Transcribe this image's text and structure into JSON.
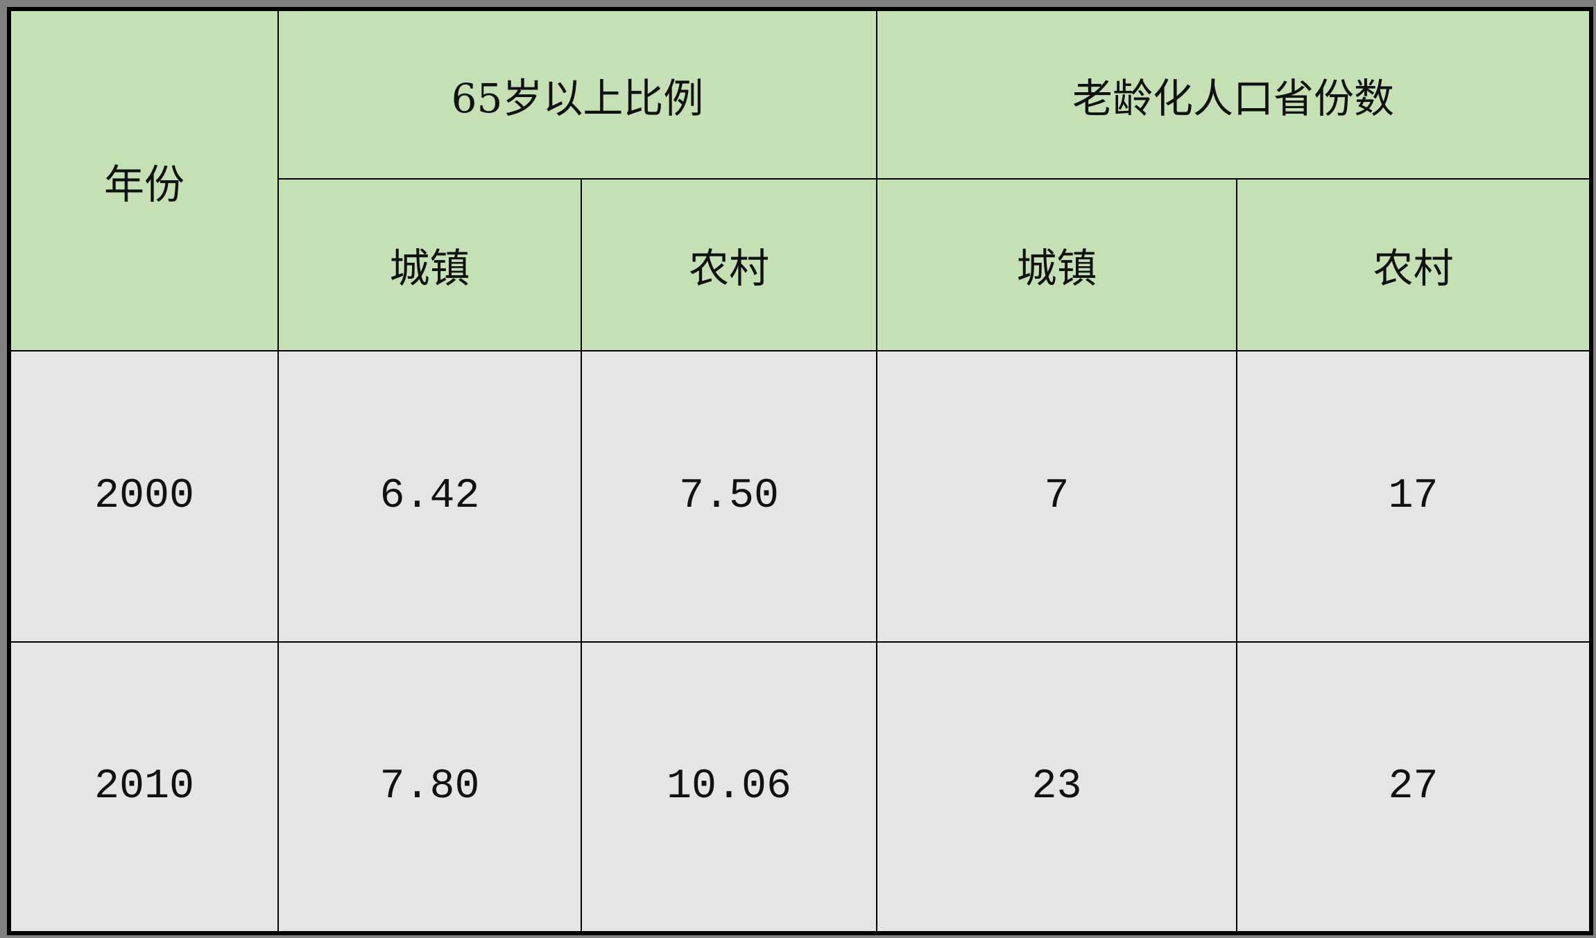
{
  "table": {
    "header": {
      "year": "年份",
      "group1": "65岁以上比例",
      "group2": "老龄化人口省份数",
      "sub": [
        "城镇",
        "农村",
        "城镇",
        "农村"
      ]
    },
    "rows": [
      {
        "year": "2000",
        "values": [
          "6.42",
          "7.50",
          "7",
          "17"
        ]
      },
      {
        "year": "2010",
        "values": [
          "7.80",
          "10.06",
          "23",
          "27"
        ]
      }
    ],
    "colors": {
      "header_bg": "#c5e0b4",
      "body_bg": "#e5e5e5",
      "frame": "#808080"
    }
  }
}
